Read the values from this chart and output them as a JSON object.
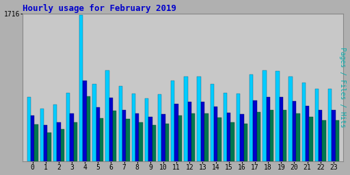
{
  "title": "Hourly usage for February 2019",
  "ylabel": "Pages / Files / Hits",
  "hours": [
    0,
    1,
    2,
    3,
    4,
    5,
    6,
    7,
    8,
    9,
    10,
    11,
    12,
    13,
    14,
    15,
    16,
    17,
    18,
    19,
    20,
    21,
    22,
    23
  ],
  "pages": [
    430,
    335,
    375,
    455,
    755,
    500,
    590,
    490,
    455,
    425,
    440,
    535,
    560,
    560,
    510,
    455,
    440,
    570,
    600,
    595,
    555,
    520,
    480,
    475
  ],
  "files": [
    530,
    420,
    455,
    560,
    940,
    630,
    740,
    600,
    560,
    520,
    545,
    665,
    695,
    695,
    635,
    565,
    550,
    710,
    750,
    745,
    700,
    645,
    600,
    595
  ],
  "hits": [
    750,
    610,
    660,
    795,
    1700,
    895,
    1060,
    870,
    790,
    735,
    775,
    940,
    985,
    985,
    900,
    795,
    790,
    1005,
    1055,
    1050,
    985,
    910,
    845,
    840
  ],
  "ylim_max": 1716,
  "bar_width": 0.28,
  "color_pages": "#007850",
  "color_files": "#0000cc",
  "color_hits": "#00ccff",
  "bg_color": "#b0b0b0",
  "plot_bg": "#c8c8c8",
  "title_color": "#0000cc",
  "ylabel_color": "#00aaaa",
  "tick_label_font": "monospace"
}
